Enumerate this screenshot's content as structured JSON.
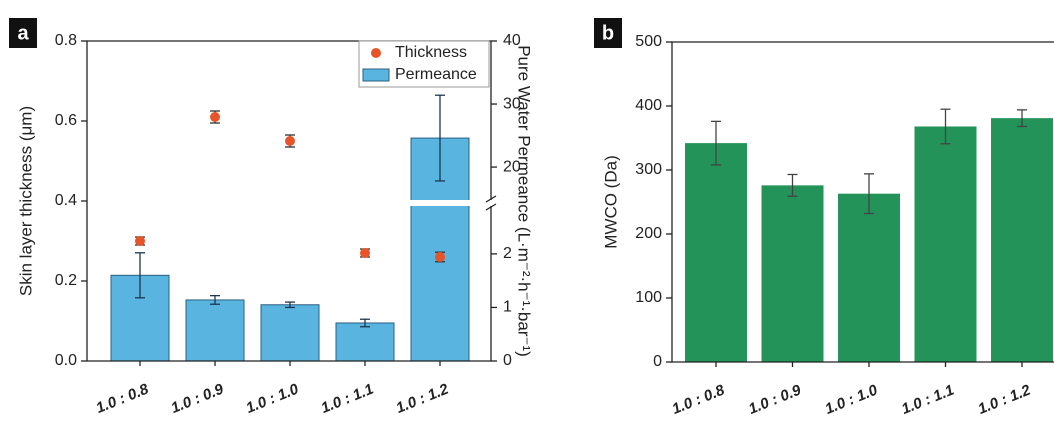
{
  "chart_data": [
    {
      "type": "combo",
      "label": "a",
      "ylabel": "Skin layer thickness (μm)",
      "y2label": "Pure Water Permeance (L·m⁻²·h⁻¹·bar⁻¹)",
      "categories": [
        "1.0 : 0.8",
        "1.0 : 0.9",
        "1.0 : 1.0",
        "1.0 : 1.1",
        "1.0 : 1.2"
      ],
      "ylim": [
        0,
        0.8
      ],
      "yticks": [
        {
          "value": 0,
          "label": "0.0"
        },
        0.2,
        0.4,
        0.6,
        0.8
      ],
      "y2lim": [
        0,
        40
      ],
      "y2ticks": [
        0,
        1,
        2,
        20,
        30,
        40
      ],
      "y2_break": [
        2.95,
        14.3
      ],
      "legend": "upper right",
      "series": [
        {
          "name": "Permeance",
          "kind": "bar",
          "axis": "y2",
          "color": "#5ab4e0",
          "values": [
            1.6,
            1.14,
            1.05,
            0.71,
            24.6
          ],
          "errors": [
            0.42,
            0.08,
            0.05,
            0.07,
            6.8
          ]
        },
        {
          "name": "Thickness",
          "kind": "scatter",
          "color": "#e8542a",
          "values": [
            0.3,
            0.61,
            0.55,
            0.27,
            0.26
          ],
          "errors": [
            0.01,
            0.015,
            0.015,
            0.01,
            0.012
          ]
        }
      ]
    },
    {
      "type": "bar",
      "label": "b",
      "ylabel": "MWCO (Da)",
      "categories": [
        "1.0 : 0.8",
        "1.0 : 0.9",
        "1.0 : 1.0",
        "1.0 : 1.1",
        "1.0 : 1.2"
      ],
      "ylim": [
        0,
        500
      ],
      "yticks": [
        0,
        100,
        200,
        300,
        400,
        500
      ],
      "color": "#23935a",
      "values": [
        342,
        276,
        263,
        368,
        381
      ],
      "errors": [
        34,
        17,
        31,
        27,
        13
      ]
    }
  ]
}
